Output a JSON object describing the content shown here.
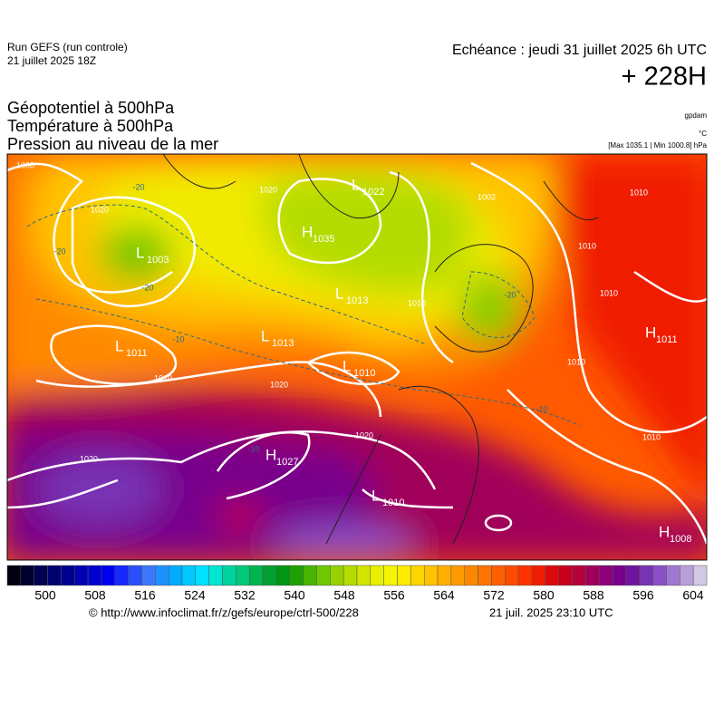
{
  "header": {
    "run": "Run GEFS (run controle)",
    "run_date": "21 juillet 2025 18Z",
    "valid": "Echéance : jeudi 31 juillet 2025 6h UTC",
    "lead": "+ 228H"
  },
  "titles": [
    "Géopotentiel à 500hPa",
    "Température à 500hPa",
    "Pression au niveau de la mer"
  ],
  "units": {
    "geopotential": "gpdam",
    "temperature": "°C",
    "pressure": "[Max 1035.1 | Min 1000.8] hPa"
  },
  "map": {
    "centers": [
      {
        "letter": "L",
        "value": 1003
      },
      {
        "letter": "H",
        "value": 1035
      },
      {
        "letter": "L",
        "value": 1022
      },
      {
        "letter": "L",
        "value": 1013
      },
      {
        "letter": "L",
        "value": 1013
      },
      {
        "letter": "L",
        "value": 1010
      },
      {
        "letter": "L",
        "value": 1011
      },
      {
        "letter": "H",
        "value": 1027
      },
      {
        "letter": "L",
        "value": 1010
      },
      {
        "letter": "H",
        "value": 1011
      },
      {
        "letter": "H",
        "value": 1008
      }
    ],
    "isobar_labels": [
      1008,
      1020,
      1020,
      1002,
      1010,
      1010,
      1010,
      1010,
      1010,
      1010,
      1020,
      1020,
      1020,
      1010
    ],
    "temperature_labels": [
      -20,
      -20,
      -20,
      -20,
      -10,
      -10,
      -10
    ]
  },
  "colorbar": {
    "colors": [
      "#000010",
      "#000030",
      "#000050",
      "#00006e",
      "#00008c",
      "#0000b0",
      "#0000d0",
      "#0000f0",
      "#1428ff",
      "#2850ff",
      "#3c78ff",
      "#1e90ff",
      "#00aaff",
      "#00c8ff",
      "#00e0ff",
      "#00e6d2",
      "#00d2a0",
      "#00c878",
      "#00b450",
      "#00a032",
      "#009614",
      "#1ea000",
      "#46b400",
      "#6ec800",
      "#96d200",
      "#b4dc00",
      "#d2e600",
      "#e6f000",
      "#f5f500",
      "#ffeb00",
      "#ffd700",
      "#ffc300",
      "#ffaf00",
      "#ff9b00",
      "#ff8700",
      "#ff7300",
      "#ff5f00",
      "#ff4b00",
      "#ff3200",
      "#f01e00",
      "#dc0a0a",
      "#c8001e",
      "#b4003c",
      "#a0005a",
      "#8c0078",
      "#78008c",
      "#6e14a0",
      "#7832b4",
      "#8c50c8",
      "#a078d2",
      "#b9a0dc",
      "#d2c8e6"
    ],
    "labels": [
      500,
      508,
      516,
      524,
      532,
      540,
      548,
      556,
      564,
      572,
      580,
      588,
      596,
      604
    ]
  },
  "footer": {
    "url": "© http://www.infoclimat.fr/z/gefs/europe/ctrl-500/228",
    "time": "21 juil. 2025 23:10 UTC"
  }
}
